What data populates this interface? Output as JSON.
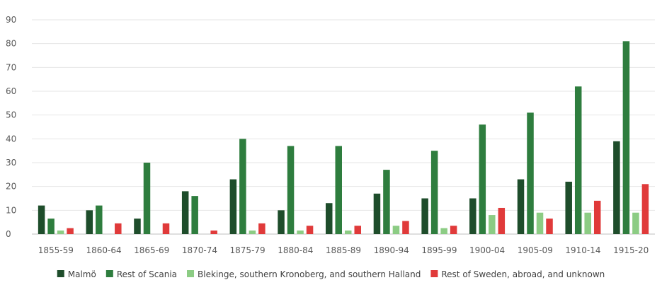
{
  "chart_data": {
    "type": "bar",
    "categories": [
      "1855-59",
      "1860-64",
      "1865-69",
      "1870-74",
      "1875-79",
      "1880-84",
      "1885-89",
      "1890-94",
      "1895-99",
      "1900-04",
      "1905-09",
      "1910-14",
      "1915-20"
    ],
    "series": [
      {
        "name": "Malmö",
        "color": "#1e4d2b",
        "values": [
          12,
          10,
          6.5,
          18,
          23,
          10,
          13,
          17,
          15,
          15,
          23,
          22,
          39
        ]
      },
      {
        "name": "Rest of Scania",
        "color": "#2e7d3e",
        "values": [
          6.5,
          12,
          30,
          16,
          40,
          37,
          37,
          27,
          35,
          46,
          51,
          62,
          81
        ]
      },
      {
        "name": "Blekinge, southern Kronoberg, and southern Halland",
        "color": "#8ccc84",
        "values": [
          1.5,
          0,
          0,
          0,
          1.5,
          1.5,
          1.5,
          3.5,
          2.5,
          8,
          9,
          9,
          9
        ]
      },
      {
        "name": "Rest of Sweden, abroad, and unknown",
        "color": "#e03a3a",
        "values": [
          2.5,
          4.5,
          4.5,
          1.5,
          4.5,
          3.5,
          3.5,
          5.5,
          3.5,
          11,
          6.5,
          14,
          21
        ]
      }
    ],
    "y_ticks": [
      "0",
      "10",
      "20",
      "30",
      "40",
      "50",
      "60",
      "70",
      "80",
      "90"
    ],
    "ylim": [
      0,
      90
    ],
    "grid": true,
    "legend_position": "bottom"
  }
}
